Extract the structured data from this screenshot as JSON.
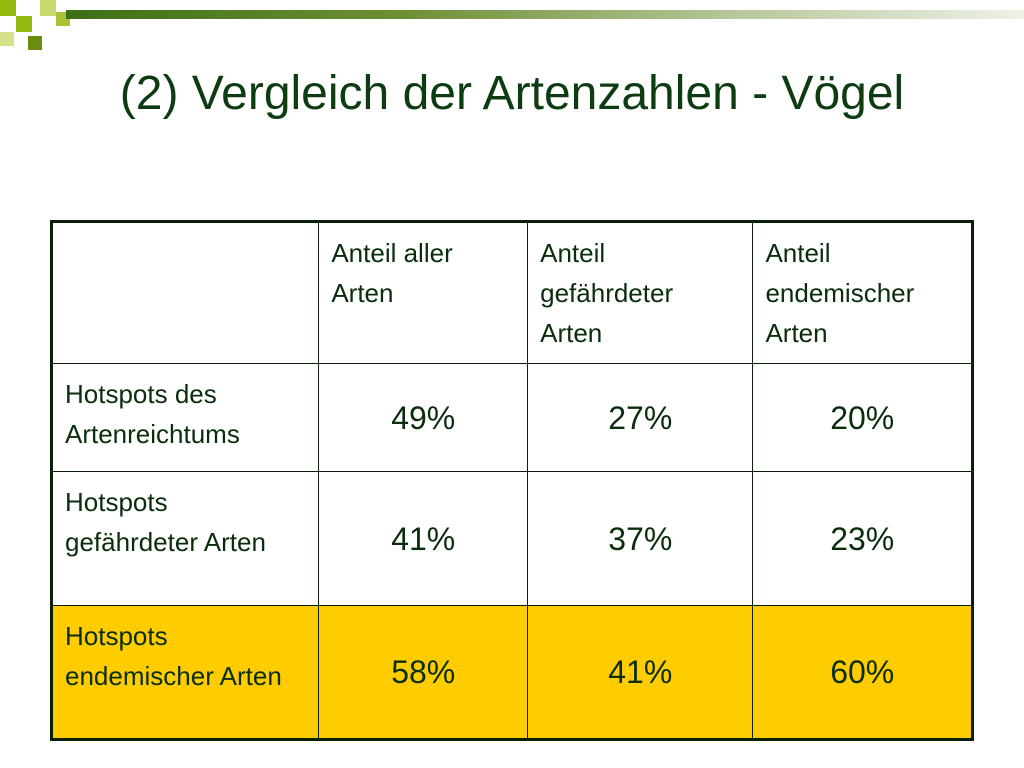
{
  "slide": {
    "title": "(2) Vergleich der Artenzahlen - Vögel",
    "colors": {
      "title": "#0d3b12",
      "highlight_row": "#ffcc00",
      "border": "#0a1f08"
    }
  },
  "table": {
    "columns": [
      "",
      "Anteil aller Arten",
      "Anteil gefährdeter Arten",
      "Anteil endemischer Arten"
    ],
    "rows": [
      {
        "label": "Hotspots des Artenreichtums",
        "values": [
          "49%",
          "27%",
          "20%"
        ],
        "highlighted": false
      },
      {
        "label": "Hotspots gefährdeter Arten",
        "values": [
          "41%",
          "37%",
          "23%"
        ],
        "highlighted": false
      },
      {
        "label": "Hotspots endemischer Arten",
        "values": [
          "58%",
          "41%",
          "60%"
        ],
        "highlighted": true
      }
    ]
  }
}
